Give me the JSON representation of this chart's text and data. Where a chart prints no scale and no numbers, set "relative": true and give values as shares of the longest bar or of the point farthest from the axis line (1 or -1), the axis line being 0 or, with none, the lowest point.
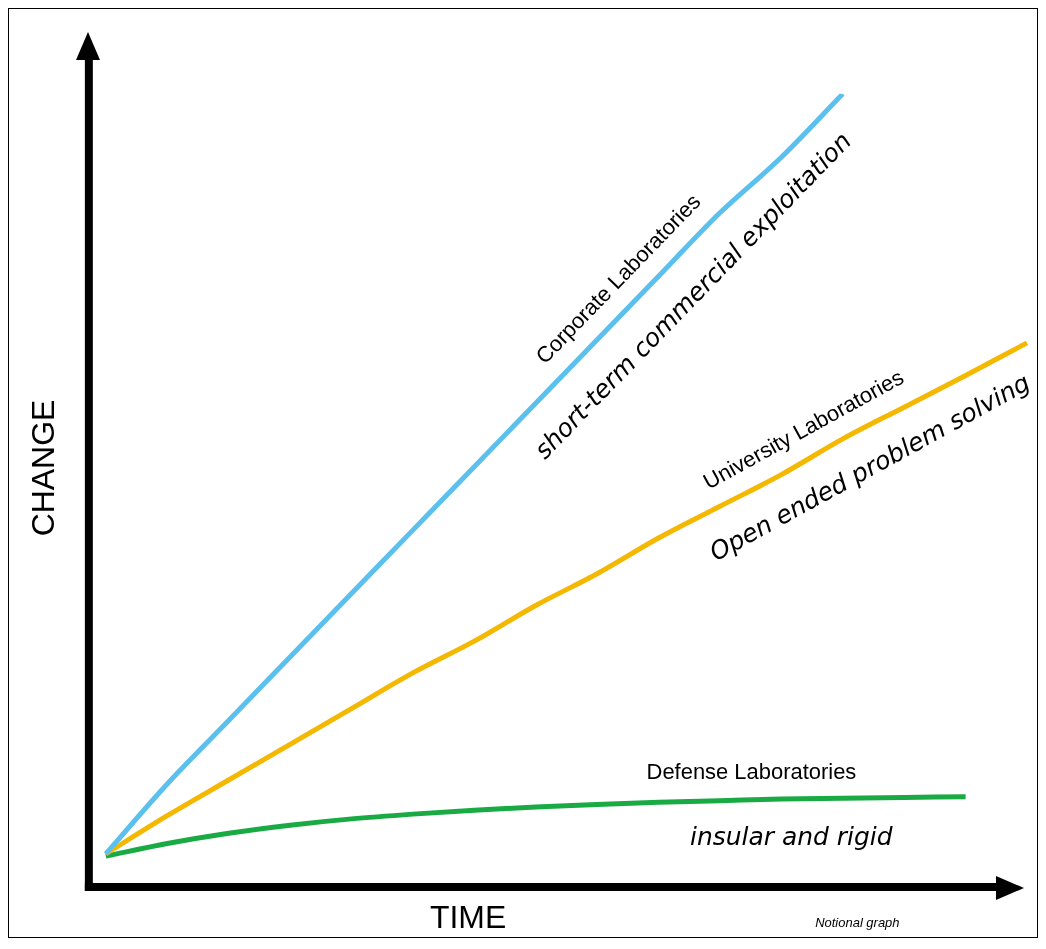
{
  "chart_data": {
    "type": "line",
    "relative": true,
    "xlabel": "TIME",
    "ylabel": "CHANGE",
    "legend": false,
    "grid": false,
    "marker": "none",
    "line_style": "solid",
    "categories": [
      null,
      null,
      null,
      null,
      null,
      null,
      null,
      null,
      null,
      null,
      null,
      null,
      null,
      null,
      null,
      null
    ],
    "series": [
      {
        "name": "Corporate Laboratories",
        "color": "#5bc0ee",
        "values": [
          0.042,
          0.13,
          0.21,
          0.29,
          0.37,
          0.45,
          0.53,
          0.61,
          0.69,
          0.77,
          0.85,
          0.92,
          1.0,
          null,
          null,
          null
        ]
      },
      {
        "name": "University Laboratories",
        "color": "#f5b800",
        "values": [
          0.042,
          0.09,
          0.135,
          0.18,
          0.225,
          0.27,
          0.31,
          0.355,
          0.395,
          0.44,
          0.48,
          0.52,
          0.565,
          0.605,
          0.645,
          0.686
        ]
      },
      {
        "name": "Defense Laboratories",
        "color": "#1aaa44",
        "values": [
          0.039,
          0.055,
          0.068,
          0.078,
          0.086,
          0.092,
          0.097,
          0.101,
          0.104,
          0.107,
          0.109,
          0.111,
          0.112,
          0.113,
          0.114,
          null
        ]
      }
    ],
    "annotations": [
      "short-term commercial exploitation",
      "Open ended problem solving",
      "insular and rigid",
      "Notional graph"
    ]
  }
}
